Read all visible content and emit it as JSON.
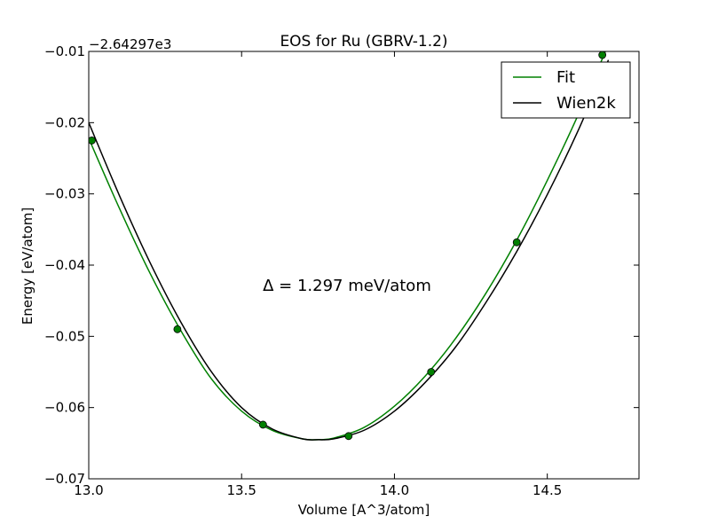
{
  "chart_data": {
    "type": "line",
    "title": "EOS for Ru (GBRV-1.2)",
    "xlabel": "Volume [A^3/atom]",
    "ylabel": "Energy [eV/atom]",
    "y_offset_label": "−2.64297e3",
    "xlim": [
      13.0,
      14.8
    ],
    "ylim": [
      -0.07,
      -0.01
    ],
    "x_ticks": [
      13.0,
      13.5,
      14.0,
      14.5
    ],
    "x_tick_labels": [
      "13.0",
      "13.5",
      "14.0",
      "14.5"
    ],
    "y_ticks": [
      -0.07,
      -0.06,
      -0.05,
      -0.04,
      -0.03,
      -0.02,
      -0.01
    ],
    "y_tick_labels": [
      "−0.07",
      "−0.06",
      "−0.05",
      "−0.04",
      "−0.03",
      "−0.02",
      "−0.01"
    ],
    "grid": false,
    "legend_position": "top-right",
    "annotation": "Δ = 1.297 meV/atom",
    "series": [
      {
        "name": "Fit",
        "kind": "curve",
        "color": "#008000",
        "x": [
          13.0,
          13.1,
          13.2,
          13.3,
          13.4,
          13.5,
          13.6,
          13.7,
          13.75,
          13.8,
          13.9,
          14.0,
          14.1,
          14.2,
          14.3,
          14.4,
          14.5,
          14.6,
          14.7
        ],
        "y": [
          -0.0222,
          -0.032,
          -0.0411,
          -0.0491,
          -0.0559,
          -0.0605,
          -0.0632,
          -0.0644,
          -0.0645,
          -0.0643,
          -0.0628,
          -0.0598,
          -0.0556,
          -0.0503,
          -0.0439,
          -0.0365,
          -0.0281,
          -0.019,
          -0.009
        ]
      },
      {
        "name": "Wien2k",
        "kind": "curve",
        "color": "#000000",
        "x": [
          13.0,
          13.1,
          13.2,
          13.3,
          13.4,
          13.5,
          13.6,
          13.7,
          13.75,
          13.8,
          13.9,
          14.0,
          14.1,
          14.2,
          14.3,
          14.4,
          14.5,
          14.6,
          14.7
        ],
        "y": [
          -0.02,
          -0.0302,
          -0.0396,
          -0.0479,
          -0.0549,
          -0.06,
          -0.063,
          -0.0644,
          -0.0645,
          -0.0644,
          -0.0632,
          -0.0605,
          -0.0565,
          -0.0515,
          -0.0452,
          -0.0381,
          -0.0301,
          -0.0212,
          -0.0112
        ]
      },
      {
        "name": "",
        "kind": "points",
        "color": "#008000",
        "x": [
          13.01,
          13.29,
          13.57,
          13.85,
          14.12,
          14.4,
          14.68
        ],
        "y": [
          -0.0225,
          -0.049,
          -0.0624,
          -0.064,
          -0.055,
          -0.0368,
          -0.0105
        ]
      }
    ]
  }
}
